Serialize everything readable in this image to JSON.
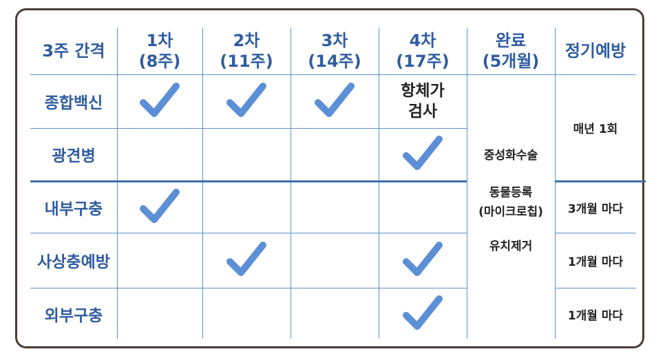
{
  "header": {
    "interval": "3주 간격",
    "round1": "1차\n(8주)",
    "round2": "2차\n(11주)",
    "round3": "3차\n(14주)",
    "round4": "4차\n(17주)",
    "complete": "완료\n(5개월)",
    "regular": "정기예방"
  },
  "rows": {
    "combo": "종합백신",
    "rabies": "광견병",
    "internal": "내부구충",
    "heartworm": "사상충예방",
    "external": "외부구충"
  },
  "cells": {
    "antibody_test": "항체가\n검사",
    "complete_items": [
      "중성화수술",
      "동물등록\n(마이크로칩)",
      "유치제거"
    ],
    "yearly": "매년 1회",
    "every_3_months": "3개월 마다",
    "every_1_month_a": "1개월 마다",
    "every_1_month_b": "1개월 마다"
  },
  "icons": {
    "check": "check-icon"
  },
  "colors": {
    "accent": "#2f5ca0",
    "check": "#5b8fd6",
    "border": "#4a3b36"
  }
}
